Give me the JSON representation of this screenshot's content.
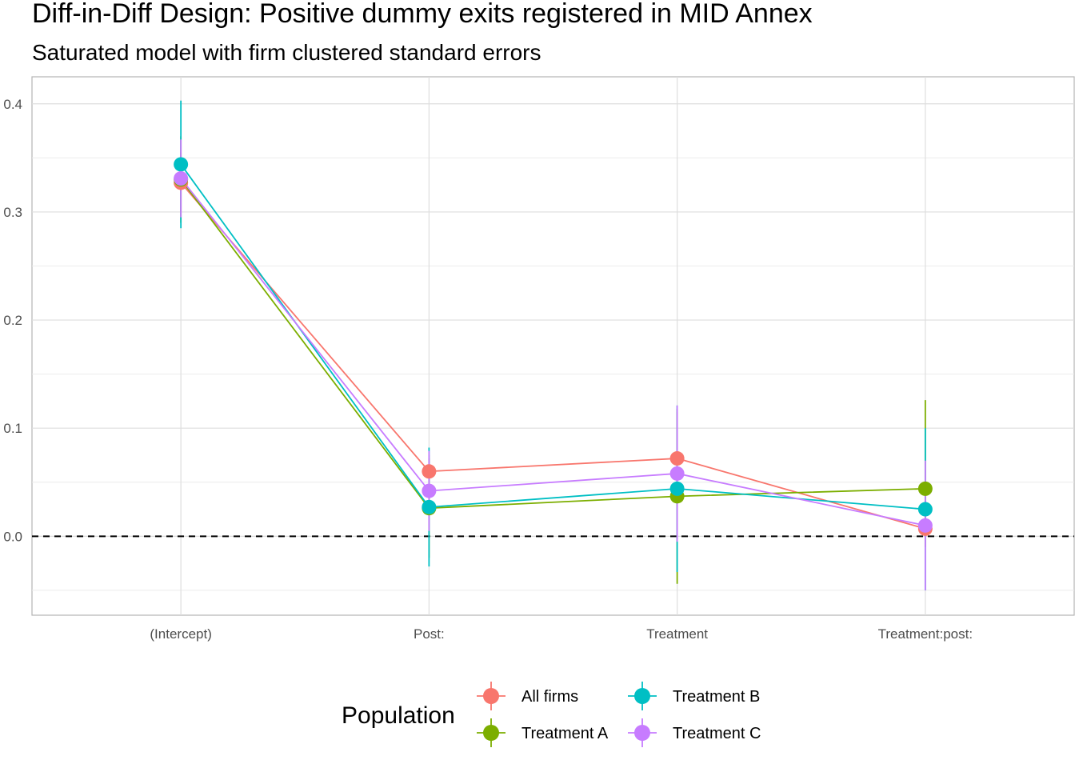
{
  "chart_data": {
    "type": "line",
    "title": "Diff-in-Diff Design: Positive dummy exits registered in MID Annex",
    "subtitle": "Saturated model with firm clustered standard errors",
    "xlabel": "",
    "ylabel": "",
    "categories": [
      "(Intercept)",
      "Post:",
      "Treatment",
      "Treatment:post:"
    ],
    "y_ticks": [
      "0.0",
      "0.1",
      "0.2",
      "0.3",
      "0.4"
    ],
    "y_tick_values": [
      0.0,
      0.1,
      0.2,
      0.3,
      0.4
    ],
    "ylim": [
      -0.073,
      0.425
    ],
    "reference_line": 0.0,
    "grid": true,
    "legend": {
      "title": "Population",
      "placement": "bottom"
    },
    "series": [
      {
        "name": "All firms",
        "color": "#F8766D",
        "values": [
          0.327,
          0.06,
          0.072,
          0.007
        ],
        "lower": [
          0.3,
          0.045,
          0.03,
          -0.01
        ],
        "upper": [
          0.355,
          0.075,
          0.115,
          0.025
        ]
      },
      {
        "name": "Treatment A",
        "color": "#7CAE00",
        "values": [
          0.33,
          0.026,
          0.037,
          0.044
        ],
        "lower": [
          0.29,
          -0.02,
          -0.044,
          0.005
        ],
        "upper": [
          0.37,
          0.072,
          0.118,
          0.126
        ]
      },
      {
        "name": "Treatment B",
        "color": "#00BFC4",
        "values": [
          0.344,
          0.027,
          0.044,
          0.025
        ],
        "lower": [
          0.285,
          -0.028,
          -0.033,
          -0.05
        ],
        "upper": [
          0.403,
          0.082,
          0.121,
          0.1
        ]
      },
      {
        "name": "Treatment C",
        "color": "#C77CFF",
        "values": [
          0.331,
          0.042,
          0.058,
          0.01
        ],
        "lower": [
          0.295,
          0.005,
          -0.005,
          -0.05
        ],
        "upper": [
          0.367,
          0.079,
          0.121,
          0.07
        ]
      }
    ]
  }
}
